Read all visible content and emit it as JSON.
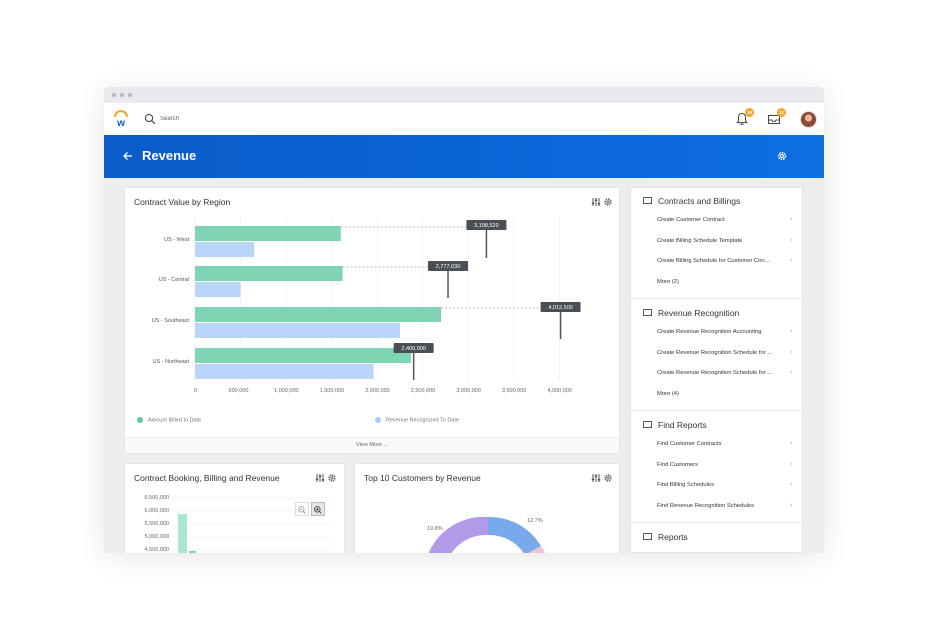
{
  "search": {
    "placeholder": "Search"
  },
  "notifications": {
    "badge": "19"
  },
  "inbox": {
    "badge": "12"
  },
  "header": {
    "title": "Revenue"
  },
  "region_card": {
    "title": "Contract Value by Region",
    "view_more": "View More ..."
  },
  "chart_data": [
    {
      "type": "bar",
      "orientation": "horizontal",
      "title": "Contract Value by Region",
      "categories": [
        "US - West",
        "US - Central",
        "US - Southeast",
        "US - Northeast"
      ],
      "series": [
        {
          "name": "Amount Billed to Date",
          "color": "#7fd4b4",
          "values": [
            1600000,
            1620000,
            2700000,
            2370000
          ]
        },
        {
          "name": "Revenue Recognized To Date",
          "color": "#b9d6f8",
          "values": [
            650000,
            500000,
            2250000,
            1960000
          ]
        }
      ],
      "totals": [
        3198520,
        2777030,
        4012500,
        2400000
      ],
      "total_labels": [
        "3,198,520",
        "2,777,030",
        "4,012,500",
        "2,400,000"
      ],
      "x_ticks": [
        "0",
        "500,000",
        "1,000,000",
        "1,500,000",
        "2,000,000",
        "2,500,000",
        "3,000,000",
        "3,500,000",
        "4,000,000"
      ],
      "xlim": [
        0,
        4500000
      ],
      "grid": true,
      "legend": "bottom"
    },
    {
      "type": "bar",
      "title": "Contract Booking, Billing and Revenue",
      "y_ticks": [
        "6,500,000",
        "6,000,000",
        "5,500,000",
        "5,000,000",
        "4,500,000"
      ]
    },
    {
      "type": "pie",
      "title": "Top 10 Customers by Revenue",
      "slice_labels": [
        "19.8%",
        "12.7%"
      ]
    }
  ],
  "booking_card": {
    "title": "Contract Booking, Billing and Revenue"
  },
  "customers_card": {
    "title": "Top 10 Customers by Revenue"
  },
  "sidebar": {
    "sections": [
      {
        "title": "Contracts and Billings",
        "items": [
          "Create Customer Contract",
          "Create Billing Schedule Template",
          "Create Billing Schedule for Customer Con..."
        ],
        "more": "More (2)"
      },
      {
        "title": "Revenue Recognition",
        "items": [
          "Create Revenue Recognition Accounting",
          "Create Revenue Recognition Schedule for ...",
          "Create Revenue Recognition Schedule for ..."
        ],
        "more": "More (4)"
      },
      {
        "title": "Find Reports",
        "items": [
          "Find Customer Contracts",
          "Find Customers",
          "Find Billing Schedules",
          "Find Revenue Recognition Schedules"
        ]
      },
      {
        "title": "Reports",
        "items": []
      }
    ]
  },
  "colors": {
    "brand": "#0b66d9",
    "accent": "#f5a623",
    "billed": "#7fd4b4",
    "recognized": "#b9d6f8"
  }
}
